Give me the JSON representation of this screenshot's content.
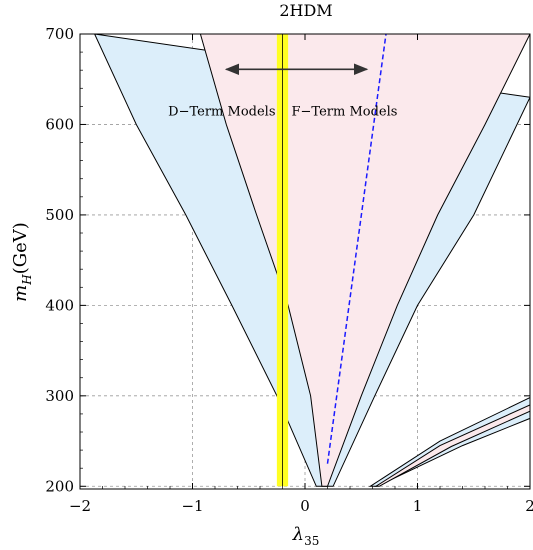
{
  "chart_data": {
    "type": "area",
    "title": "2HDM",
    "xlabel": "λ",
    "xlabel_sub": "35",
    "ylabel": "m",
    "ylabel_sub": "H",
    "ylabel_unit": "(GeV)",
    "xlim": [
      -2,
      2
    ],
    "ylim": [
      197,
      700
    ],
    "xticks": [
      -2,
      -1,
      0,
      1,
      2
    ],
    "xtick_labels": [
      "−2",
      "−1",
      "0",
      "1",
      "2"
    ],
    "yticks": [
      200,
      300,
      400,
      500,
      600,
      700
    ],
    "ytick_labels": [
      "200",
      "300",
      "400",
      "500",
      "600",
      "700"
    ],
    "grid": true,
    "colors": {
      "blue_region": "#dceefa",
      "pink_region": "#fbe9ec",
      "yellow_band": "#ffff22",
      "dashed_line": "#1a1aff",
      "boundary": "#000000"
    },
    "blue_region": {
      "left_outer": [
        [
          -1.87,
          700
        ],
        [
          -1.5,
          600
        ],
        [
          -1.06,
          500
        ],
        [
          -0.65,
          400
        ],
        [
          -0.25,
          300
        ],
        [
          0.1,
          200
        ]
      ],
      "right_outer": [
        [
          2.0,
          630
        ],
        [
          1.5,
          500
        ],
        [
          1.0,
          400
        ],
        [
          0.62,
          300
        ],
        [
          0.25,
          200
        ]
      ]
    },
    "pink_region": {
      "left_inner": [
        [
          -0.93,
          700
        ],
        [
          -0.7,
          600
        ],
        [
          -0.43,
          500
        ],
        [
          -0.15,
          400
        ],
        [
          0.05,
          300
        ],
        [
          0.15,
          200
        ]
      ],
      "right_inner": [
        [
          2.0,
          700
        ],
        [
          1.6,
          600
        ],
        [
          1.18,
          500
        ],
        [
          0.82,
          400
        ],
        [
          0.5,
          300
        ],
        [
          0.2,
          200
        ]
      ]
    },
    "lower_right_blue": [
      [
        0.58,
        200
      ],
      [
        1.2,
        250
      ],
      [
        2.0,
        298
      ],
      [
        2.0,
        275
      ],
      [
        1.4,
        245
      ],
      [
        0.64,
        200
      ]
    ],
    "lower_right_pink": [
      [
        0.63,
        200
      ],
      [
        1.2,
        245
      ],
      [
        2.0,
        290
      ],
      [
        2.0,
        283
      ],
      [
        1.3,
        244
      ],
      [
        0.66,
        200
      ]
    ],
    "yellow_band": {
      "x_min": -0.25,
      "x_max": -0.15,
      "y_min": 200,
      "y_max": 700
    },
    "dashed_line": [
      [
        0.2,
        225
      ],
      [
        0.72,
        700
      ]
    ],
    "annotations": {
      "d_term": "D−Term Models",
      "f_term": "F−Term Models",
      "arrow_y": 661,
      "arrow_left_x": -0.7,
      "arrow_right_x": 0.55,
      "arrow_center_x": -0.2
    }
  }
}
